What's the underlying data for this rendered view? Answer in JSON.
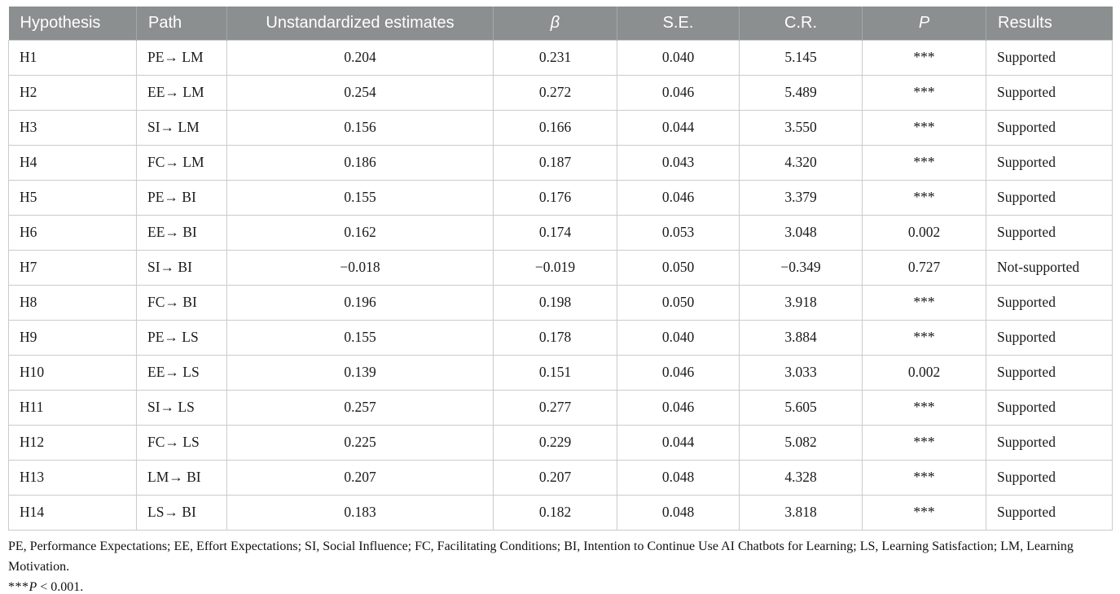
{
  "colors": {
    "header_background": "#8b8f90",
    "header_text": "#ffffff",
    "cell_border": "#c9cbcc",
    "body_text": "#1a1a1a"
  },
  "table": {
    "columns": [
      {
        "key": "hypothesis",
        "label": "Hypothesis",
        "align": "left",
        "italic": false
      },
      {
        "key": "path",
        "label": "Path",
        "align": "left",
        "italic": false
      },
      {
        "key": "unstd",
        "label": "Unstandardized estimates",
        "align": "center",
        "italic": false
      },
      {
        "key": "beta",
        "label": "β",
        "align": "center",
        "italic": true
      },
      {
        "key": "se",
        "label": "S.E.",
        "align": "center",
        "italic": false
      },
      {
        "key": "cr",
        "label": "C.R.",
        "align": "center",
        "italic": false
      },
      {
        "key": "p",
        "label": "P",
        "align": "center",
        "italic": true
      },
      {
        "key": "result",
        "label": "Results",
        "align": "left",
        "italic": false
      }
    ],
    "rows": [
      {
        "hypothesis": "H1",
        "path": "PE→ LM",
        "unstd": "0.204",
        "beta": "0.231",
        "se": "0.040",
        "cr": "5.145",
        "p": "***",
        "result": "Supported"
      },
      {
        "hypothesis": "H2",
        "path": "EE→ LM",
        "unstd": "0.254",
        "beta": "0.272",
        "se": "0.046",
        "cr": "5.489",
        "p": "***",
        "result": "Supported"
      },
      {
        "hypothesis": "H3",
        "path": "SI→ LM",
        "unstd": "0.156",
        "beta": "0.166",
        "se": "0.044",
        "cr": "3.550",
        "p": "***",
        "result": "Supported"
      },
      {
        "hypothesis": "H4",
        "path": "FC→ LM",
        "unstd": "0.186",
        "beta": "0.187",
        "se": "0.043",
        "cr": "4.320",
        "p": "***",
        "result": "Supported"
      },
      {
        "hypothesis": "H5",
        "path": "PE→ BI",
        "unstd": "0.155",
        "beta": "0.176",
        "se": "0.046",
        "cr": "3.379",
        "p": "***",
        "result": "Supported"
      },
      {
        "hypothesis": "H6",
        "path": "EE→ BI",
        "unstd": "0.162",
        "beta": "0.174",
        "se": "0.053",
        "cr": "3.048",
        "p": "0.002",
        "result": "Supported"
      },
      {
        "hypothesis": "H7",
        "path": "SI→ BI",
        "unstd": "−0.018",
        "beta": "−0.019",
        "se": "0.050",
        "cr": "−0.349",
        "p": "0.727",
        "result": "Not-supported"
      },
      {
        "hypothesis": "H8",
        "path": "FC→ BI",
        "unstd": "0.196",
        "beta": "0.198",
        "se": "0.050",
        "cr": "3.918",
        "p": "***",
        "result": "Supported"
      },
      {
        "hypothesis": "H9",
        "path": "PE→ LS",
        "unstd": "0.155",
        "beta": "0.178",
        "se": "0.040",
        "cr": "3.884",
        "p": "***",
        "result": "Supported"
      },
      {
        "hypothesis": "H10",
        "path": "EE→ LS",
        "unstd": "0.139",
        "beta": "0.151",
        "se": "0.046",
        "cr": "3.033",
        "p": "0.002",
        "result": "Supported"
      },
      {
        "hypothesis": "H11",
        "path": "SI→ LS",
        "unstd": "0.257",
        "beta": "0.277",
        "se": "0.046",
        "cr": "5.605",
        "p": "***",
        "result": "Supported"
      },
      {
        "hypothesis": "H12",
        "path": "FC→ LS",
        "unstd": "0.225",
        "beta": "0.229",
        "se": "0.044",
        "cr": "5.082",
        "p": "***",
        "result": "Supported"
      },
      {
        "hypothesis": "H13",
        "path": "LM→ BI",
        "unstd": "0.207",
        "beta": "0.207",
        "se": "0.048",
        "cr": "4.328",
        "p": "***",
        "result": "Supported"
      },
      {
        "hypothesis": "H14",
        "path": "LS→ BI",
        "unstd": "0.183",
        "beta": "0.182",
        "se": "0.048",
        "cr": "3.818",
        "p": "***",
        "result": "Supported"
      }
    ]
  },
  "footnotes": {
    "abbreviations": "PE, Performance Expectations; EE, Effort Expectations; SI, Social Influence; FC, Facilitating Conditions; BI, Intention to Continue Use AI Chatbots for Learning; LS, Learning Satisfaction; LM, Learning Motivation.",
    "significance": {
      "stars": "***",
      "symbol": "P",
      "comparison": " < 0.001."
    }
  }
}
